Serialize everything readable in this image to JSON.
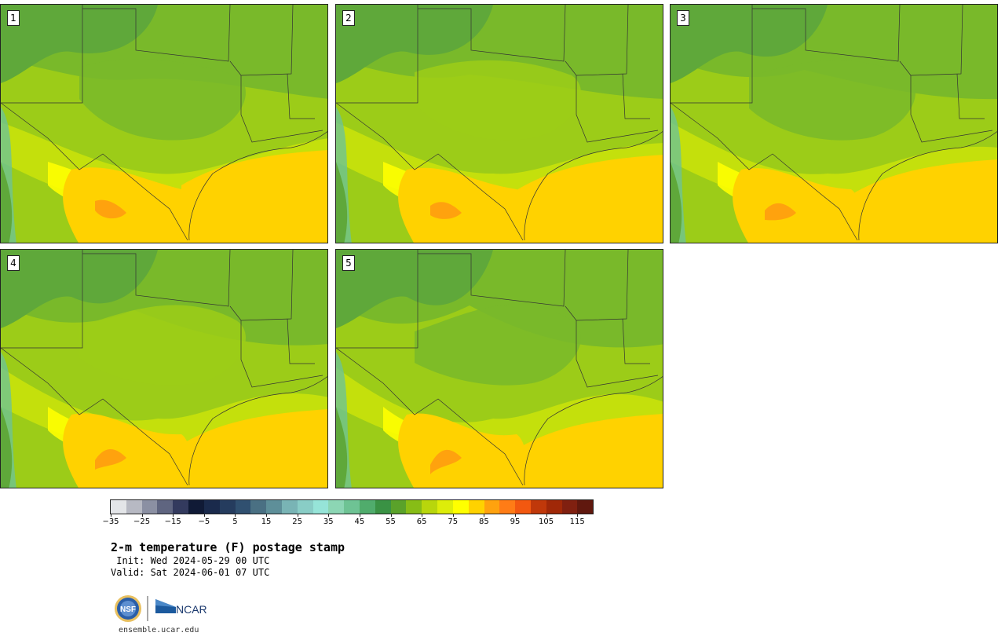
{
  "panels": [
    {
      "label": "1",
      "variant": 0
    },
    {
      "label": "2",
      "variant": 1
    },
    {
      "label": "3",
      "variant": 2
    },
    {
      "label": "4",
      "variant": 3
    },
    {
      "label": "5",
      "variant": 4
    }
  ],
  "colorbar": {
    "colors": [
      "#e3e5e8",
      "#b7b9c3",
      "#8b90a3",
      "#5f6580",
      "#333a5e",
      "#101a36",
      "#1a2a4c",
      "#253c5e",
      "#305070",
      "#4a7083",
      "#5e8f99",
      "#79b4b5",
      "#89cdc6",
      "#96e4d8",
      "#8cd6b4",
      "#6ec394",
      "#50ac6c",
      "#3a9244",
      "#5aa22a",
      "#87bd16",
      "#b8d60c",
      "#dded0a",
      "#ffff00",
      "#ffd200",
      "#ffa20e",
      "#ff7c16",
      "#f25810",
      "#c0380a",
      "#a02808",
      "#802010",
      "#60180e"
    ],
    "tick_values": [
      "−35",
      "−25",
      "−15",
      "−5",
      "5",
      "15",
      "25",
      "35",
      "45",
      "55",
      "65",
      "75",
      "85",
      "95",
      "105",
      "115"
    ]
  },
  "title": "2-m temperature (F) postage stamp",
  "init": " Init: Wed 2024-05-29 00 UTC",
  "valid": "Valid: Sat 2024-06-01 07 UTC",
  "logos": {
    "nsf": "NSF",
    "ncar": "NCAR"
  },
  "site": "ensemble.ucar.edu"
}
